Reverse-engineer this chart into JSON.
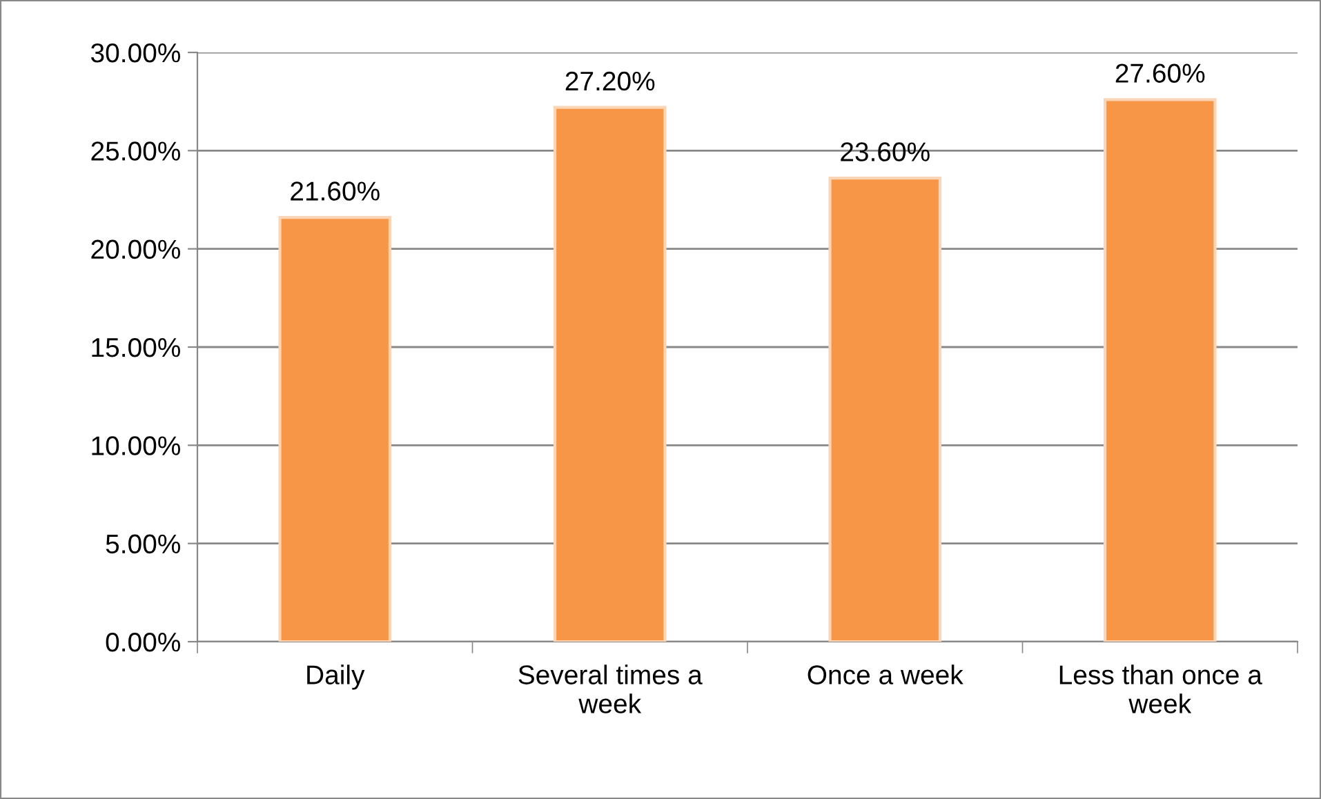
{
  "chart_data": {
    "type": "bar",
    "categories": [
      "Daily",
      "Several times a\nweek",
      "Once a week",
      "Less than once a\nweek"
    ],
    "values": [
      21.6,
      27.2,
      23.6,
      27.6
    ],
    "value_labels": [
      "21.60%",
      "27.20%",
      "23.60%",
      "27.60%"
    ],
    "color": "#f79646",
    "ylim": [
      0,
      30
    ],
    "yticks": [
      {
        "value": 0,
        "label": "0.00%"
      },
      {
        "value": 5,
        "label": "5.00%"
      },
      {
        "value": 10,
        "label": "10.00%"
      },
      {
        "value": 15,
        "label": "15.00%"
      },
      {
        "value": 20,
        "label": "20.00%"
      },
      {
        "value": 25,
        "label": "25.00%"
      },
      {
        "value": 30,
        "label": "30.00%"
      }
    ],
    "grid": "y"
  }
}
